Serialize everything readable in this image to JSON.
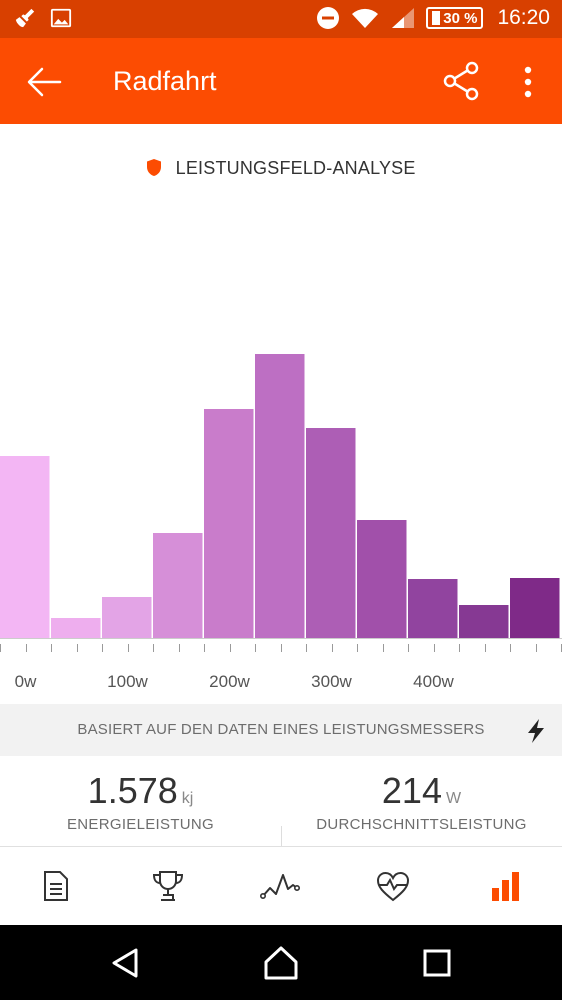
{
  "status_bar": {
    "battery": "30 %",
    "time": "16:20"
  },
  "app_bar": {
    "title": "Radfahrt"
  },
  "section": {
    "title": "LEISTUNGSFELD-ANALYSE"
  },
  "chart_data": {
    "type": "bar",
    "title": "",
    "xlabel": "",
    "ylabel": "",
    "bin_width_w": 50,
    "x_start_w": -25,
    "x_tick_labels": [
      "0w",
      "100w",
      "200w",
      "300w",
      "400w"
    ],
    "x_tick_values": [
      0,
      100,
      200,
      300,
      400
    ],
    "bins": [
      {
        "from": -25,
        "to": 25,
        "value": 182
      },
      {
        "from": 25,
        "to": 75,
        "value": 20
      },
      {
        "from": 75,
        "to": 125,
        "value": 41
      },
      {
        "from": 125,
        "to": 175,
        "value": 105
      },
      {
        "from": 175,
        "to": 225,
        "value": 229
      },
      {
        "from": 225,
        "to": 275,
        "value": 284
      },
      {
        "from": 275,
        "to": 325,
        "value": 210
      },
      {
        "from": 325,
        "to": 375,
        "value": 118
      },
      {
        "from": 375,
        "to": 425,
        "value": 59
      },
      {
        "from": 425,
        "to": 475,
        "value": 33
      },
      {
        "from": 475,
        "to": 525,
        "value": 60
      }
    ],
    "ylim": [
      0,
      440
    ],
    "colors": [
      "#f3b6f4",
      "#eeaeee",
      "#e3a4e6",
      "#d68fd8",
      "#c97ccb",
      "#bd6fc3",
      "#ad5eb5",
      "#a150aa",
      "#91449f",
      "#863993",
      "#7f2a88"
    ],
    "grid": false
  },
  "info": {
    "text": "BASIERT AUF DEN DATEN EINES LEISTUNGSMESSERS"
  },
  "stats": [
    {
      "value": "1.578",
      "unit": "kj",
      "label": "ENERGIELEISTUNG"
    },
    {
      "value": "214",
      "unit": "W",
      "label": "DURCHSCHNITTSLEISTUNG"
    }
  ],
  "tabs": [
    {
      "icon": "document-icon"
    },
    {
      "icon": "trophy-icon"
    },
    {
      "icon": "activity-graph-icon"
    },
    {
      "icon": "heart-rate-icon"
    },
    {
      "icon": "bar-chart-icon",
      "active": true
    }
  ],
  "colors": {
    "brand": "#fc4c02",
    "status_bar": "#d84000"
  }
}
